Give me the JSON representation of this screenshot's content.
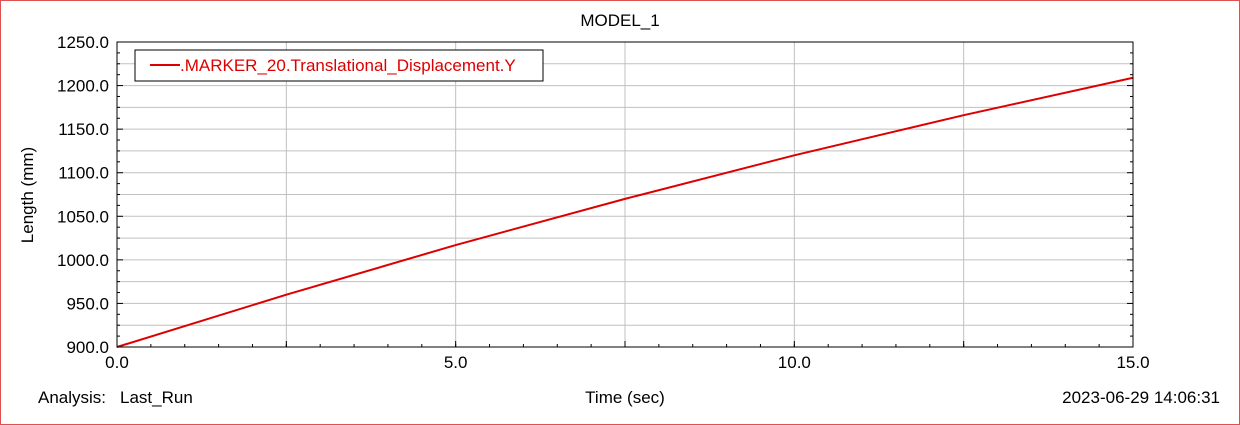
{
  "chart_data": {
    "type": "line",
    "title": "MODEL_1",
    "xlabel": "Time (sec)",
    "ylabel": "Length (mm)",
    "xlim": [
      0.0,
      15.0
    ],
    "ylim": [
      900.0,
      1250.0
    ],
    "x_ticks": [
      "0.0",
      "5.0",
      "10.0",
      "15.0"
    ],
    "y_ticks": [
      "900.0",
      "950.0",
      "1000.0",
      "1050.0",
      "1100.0",
      "1150.0",
      "1200.0",
      "1250.0"
    ],
    "grid": true,
    "legend_position": "top-left",
    "series": [
      {
        "name": ".MARKER_20.Translational_Displacement.Y",
        "color": "#dd0000",
        "x": [
          0.0,
          2.5,
          5.0,
          7.5,
          10.0,
          12.5,
          15.0
        ],
        "y": [
          900.0,
          960.0,
          1017.0,
          1070.0,
          1120.0,
          1166.0,
          1209.0
        ]
      }
    ]
  },
  "footer": {
    "analysis_label": "Analysis:",
    "analysis_value": "Last_Run",
    "timestamp": "2023-06-29 14:06:31"
  },
  "colors": {
    "frame_border": "#e05050",
    "grid": "#c0c0c0",
    "series": "#dd0000"
  }
}
